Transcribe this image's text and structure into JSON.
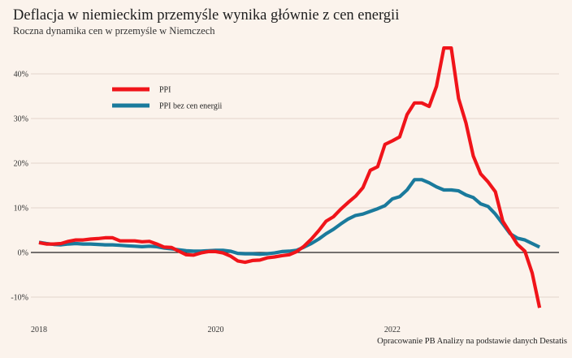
{
  "title": "Deflacja w niemieckim przemyśle wynika głównie z cen energii",
  "subtitle": "Roczna dynamika cen w przemyśle w Niemczech",
  "source": "Opracowanie PB Analizy na podstawie danych Destatis",
  "chart_data": {
    "type": "line",
    "x_start": "2018-01",
    "x_ticks": [
      "2018",
      "2020",
      "2022"
    ],
    "y_ticks": [
      "40%",
      "30%",
      "20%",
      "10%",
      "0%",
      "-10%"
    ],
    "y_tick_values": [
      40,
      30,
      20,
      10,
      0,
      -10
    ],
    "ylim": [
      -13,
      50
    ],
    "grid": "horizontal",
    "legend_position": "top-left",
    "series": [
      {
        "name": "PPI",
        "color": "#f0141a",
        "values": [
          2.2,
          1.9,
          1.9,
          2.0,
          2.5,
          2.8,
          2.8,
          3.0,
          3.1,
          3.3,
          3.3,
          2.6,
          2.6,
          2.6,
          2.4,
          2.5,
          1.9,
          1.2,
          1.1,
          0.3,
          -0.5,
          -0.6,
          -0.1,
          0.2,
          0.2,
          -0.1,
          -0.8,
          -1.9,
          -2.2,
          -1.8,
          -1.7,
          -1.2,
          -1.0,
          -0.7,
          -0.5,
          0.2,
          1.4,
          3.0,
          4.9,
          7.0,
          8.0,
          9.7,
          11.2,
          12.6,
          14.5,
          18.4,
          19.2,
          24.2,
          25.0,
          25.9,
          30.9,
          33.5,
          33.5,
          32.7,
          37.2,
          45.8,
          45.8,
          34.5,
          29.0,
          21.6,
          17.6,
          15.8,
          13.6,
          7.0,
          4.4,
          1.8,
          0.3,
          -4.6,
          -12.4
        ]
      },
      {
        "name": "PPI bez cen energii",
        "color": "#1a7a9c",
        "values": [
          2.3,
          2.0,
          1.8,
          1.7,
          1.9,
          2.0,
          1.9,
          1.9,
          1.8,
          1.7,
          1.7,
          1.6,
          1.5,
          1.4,
          1.3,
          1.4,
          1.3,
          1.0,
          0.8,
          0.6,
          0.4,
          0.3,
          0.3,
          0.4,
          0.5,
          0.5,
          0.3,
          -0.2,
          -0.3,
          -0.3,
          -0.4,
          -0.3,
          -0.1,
          0.2,
          0.3,
          0.5,
          1.2,
          2.0,
          3.0,
          4.2,
          5.2,
          6.4,
          7.5,
          8.3,
          8.6,
          9.2,
          9.8,
          10.5,
          12.0,
          12.5,
          14.0,
          16.3,
          16.3,
          15.6,
          14.7,
          14.0,
          14.0,
          13.8,
          12.9,
          12.3,
          10.9,
          10.3,
          8.6,
          6.4,
          4.2,
          3.2,
          2.8,
          2.0,
          1.2
        ]
      }
    ]
  }
}
